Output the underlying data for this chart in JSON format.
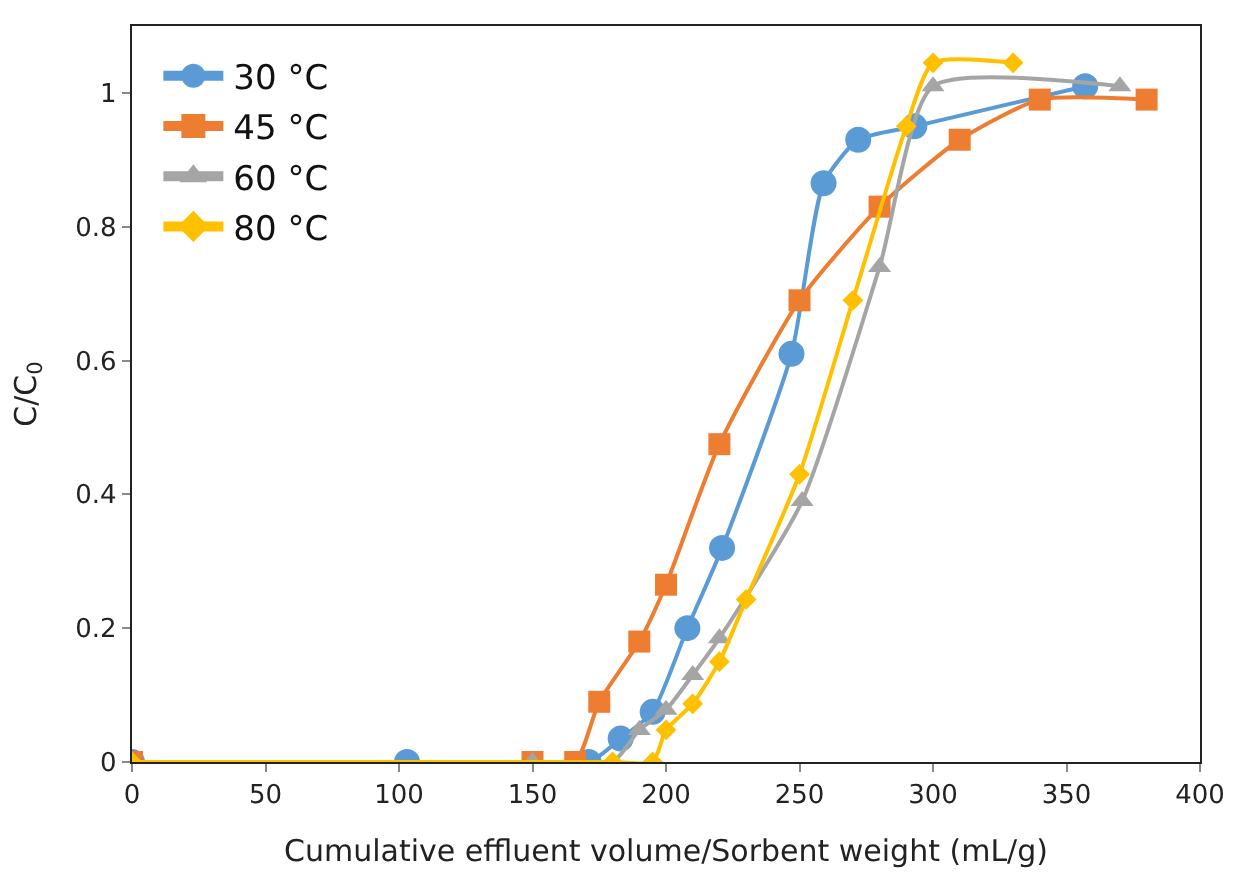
{
  "chart_data": {
    "type": "line",
    "xlabel": "Cumulative effluent volume/Sorbent weight (mL/g)",
    "ylabel": "C/C$_{0}$",
    "xlim": [
      0,
      400
    ],
    "xticks": [
      0,
      50,
      100,
      150,
      200,
      250,
      300,
      350,
      400
    ],
    "ylim": [
      0,
      1.1
    ],
    "yticks": [
      0,
      0.2,
      0.4,
      0.6,
      0.8,
      1
    ],
    "legend": "top left",
    "line_style": "solid",
    "series": [
      {
        "name": "30 °C",
        "color": "#5b9bd5",
        "marker": "circle",
        "x": [
          0,
          103,
          171,
          183,
          195,
          208,
          221,
          247,
          259,
          272,
          293,
          357
        ],
        "values": [
          0,
          0,
          0,
          0.035,
          0.075,
          0.2,
          0.32,
          0.61,
          0.865,
          0.93,
          0.95,
          1.01
        ]
      },
      {
        "name": "45 °C",
        "color": "#ed7d31",
        "marker": "square",
        "x": [
          0,
          150,
          166,
          175,
          190,
          200,
          220,
          250,
          280,
          310,
          340,
          380
        ],
        "values": [
          0,
          0,
          0,
          0.09,
          0.18,
          0.265,
          0.475,
          0.69,
          0.83,
          0.93,
          0.99,
          0.99
        ]
      },
      {
        "name": "60 °C",
        "color": "#a5a5a5",
        "marker": "triangle",
        "x": [
          0,
          150,
          180,
          190,
          200,
          210,
          220,
          251,
          280,
          300,
          370
        ],
        "values": [
          0,
          0,
          0,
          0.048,
          0.078,
          0.13,
          0.185,
          0.39,
          0.74,
          1.01,
          1.01
        ]
      },
      {
        "name": "80 °C",
        "color": "#ffc000",
        "marker": "diamond",
        "x": [
          0,
          180,
          195,
          200,
          210,
          220,
          230,
          250,
          270,
          290,
          300,
          330
        ],
        "values": [
          0,
          0,
          0,
          0.048,
          0.087,
          0.15,
          0.243,
          0.43,
          0.69,
          0.95,
          1.045,
          1.045
        ]
      }
    ]
  }
}
